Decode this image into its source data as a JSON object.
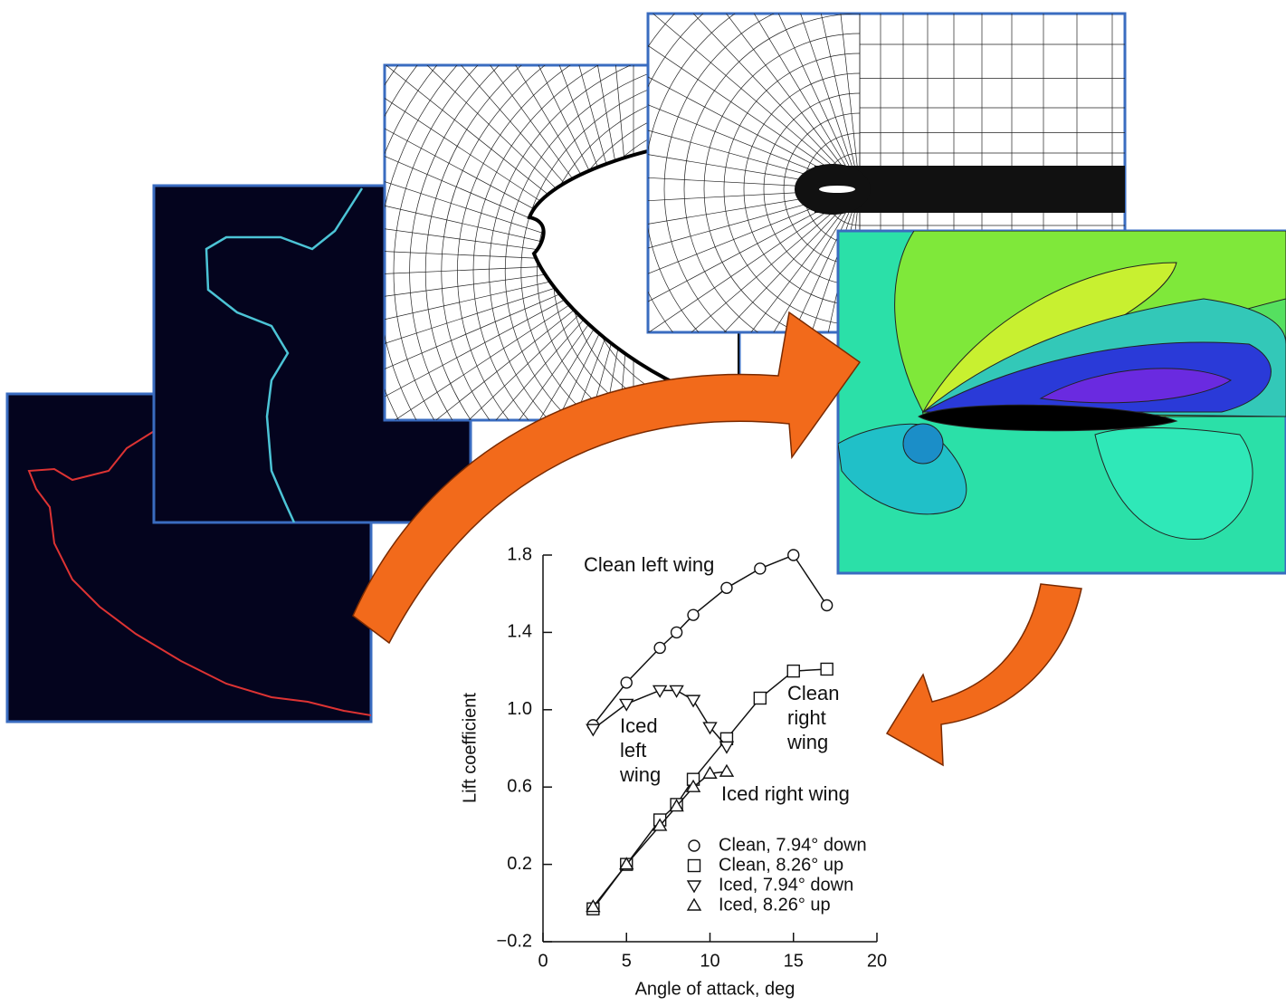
{
  "chart_data": {
    "type": "line",
    "x_label": "Angle of attack, deg",
    "y_label": "Lift coefficient",
    "xlim": [
      0,
      20
    ],
    "xticks": [
      0,
      5,
      10,
      15,
      20
    ],
    "ylim": [
      -0.2,
      1.8
    ],
    "yticks": [
      {
        "value": -0.2,
        "label": "−0.2"
      },
      0.2,
      0.6,
      {
        "value": 1.0,
        "label": "1.0"
      },
      1.4,
      1.8
    ],
    "series": [
      {
        "name": "Clean, 7.94° down",
        "marker": "circle",
        "color": "#111111",
        "x": [
          3,
          5,
          7,
          8,
          9,
          11,
          13,
          15,
          17
        ],
        "values": [
          0.92,
          1.14,
          1.32,
          1.4,
          1.49,
          1.63,
          1.73,
          1.8,
          1.54
        ]
      },
      {
        "name": "Clean, 8.26° up",
        "marker": "square",
        "color": "#111111",
        "x": [
          3,
          5,
          7,
          8,
          9,
          11,
          13,
          15,
          17
        ],
        "values": [
          -0.03,
          0.2,
          0.43,
          0.51,
          0.64,
          0.85,
          1.06,
          1.2,
          1.21
        ]
      },
      {
        "name": "Iced, 7.94° down",
        "marker": "triangle-down",
        "color": "#111111",
        "x": [
          3,
          5,
          7,
          8,
          9,
          10,
          11
        ],
        "values": [
          0.9,
          1.03,
          1.1,
          1.1,
          1.05,
          0.91,
          0.81
        ]
      },
      {
        "name": "Iced, 8.26° up",
        "marker": "triangle-up",
        "color": "#111111",
        "x": [
          3,
          5,
          7,
          8,
          9,
          10,
          11
        ],
        "values": [
          -0.02,
          0.2,
          0.4,
          0.5,
          0.6,
          0.67,
          0.68
        ]
      }
    ],
    "annotations": [
      "Clean left wing",
      "Iced left wing",
      "Clean right wing",
      "Iced right wing"
    ]
  }
}
